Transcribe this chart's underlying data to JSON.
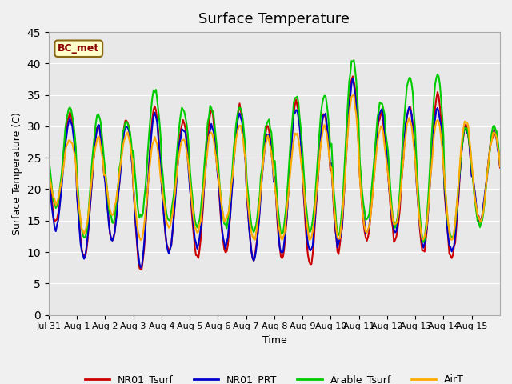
{
  "title": "Surface Temperature",
  "ylabel": "Surface Temperature (C)",
  "xlabel": "Time",
  "annotation": "BC_met",
  "ylim": [
    0,
    45
  ],
  "yticks": [
    0,
    5,
    10,
    15,
    20,
    25,
    30,
    35,
    40,
    45
  ],
  "series": {
    "NR01_Tsurf": {
      "color": "#cc0000",
      "lw": 1.5
    },
    "NR01_PRT": {
      "color": "#0000cc",
      "lw": 1.5
    },
    "Arable_Tsurf": {
      "color": "#00cc00",
      "lw": 1.5
    },
    "AirT": {
      "color": "#ffaa00",
      "lw": 1.5
    }
  },
  "xtick_labels": [
    "Jul 31",
    "Aug 1",
    "Aug 2",
    "Aug 3",
    "Aug 4",
    "Aug 5",
    "Aug 6",
    "Aug 7",
    "Aug 8",
    "Aug 9",
    "Aug 10",
    "Aug 11",
    "Aug 12",
    "Aug 13",
    "Aug 14",
    "Aug 15"
  ],
  "bg_color": "#e8e8e8",
  "plot_bg": "#e8e8e8",
  "legend_items": [
    "NR01_Tsurf",
    "NR01_PRT",
    "Arable_Tsurf",
    "AirT"
  ],
  "legend_colors": [
    "#cc0000",
    "#0000cc",
    "#00cc00",
    "#ffaa00"
  ]
}
